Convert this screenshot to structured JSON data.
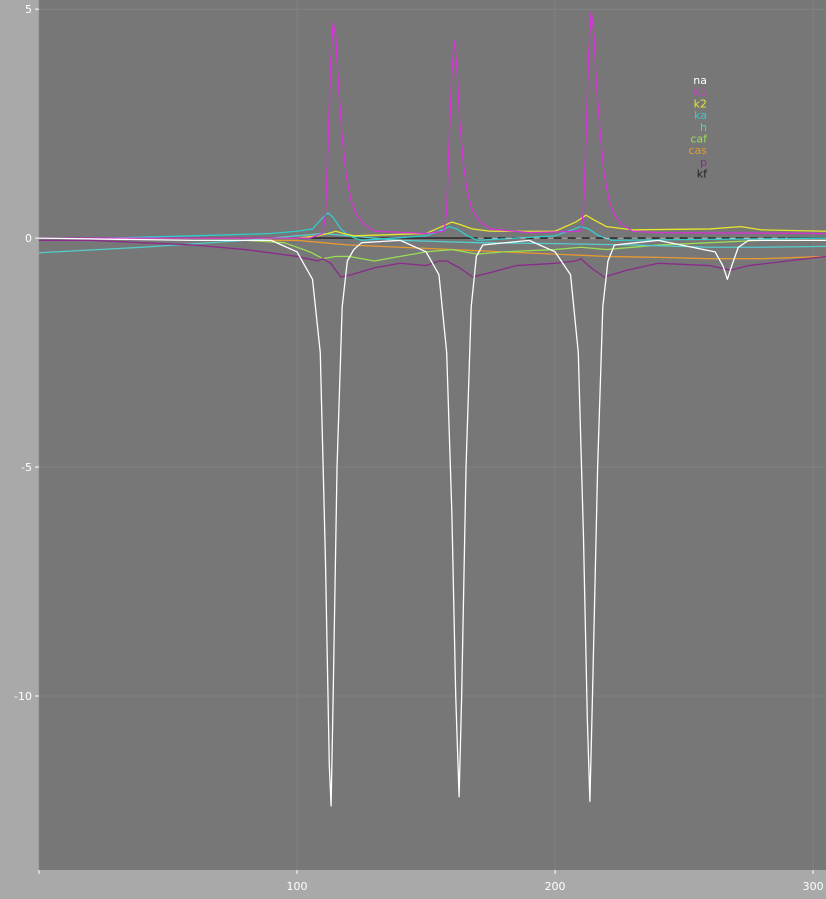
{
  "chart_data": {
    "type": "line",
    "title": "",
    "xlabel": "",
    "ylabel": "",
    "xlim": [
      0,
      305
    ],
    "ylim": [
      -13.8,
      5.2
    ],
    "grid": true,
    "legend_position": "top-right",
    "plot_background": "#777777",
    "outer_background": "#a9a9a9",
    "xticks": [
      {
        "value": 0,
        "label": ""
      },
      {
        "value": 100,
        "label": "100"
      },
      {
        "value": 200,
        "label": "200"
      },
      {
        "value": 300,
        "label": "300"
      }
    ],
    "yticks": [
      {
        "value": 5,
        "label": "5"
      },
      {
        "value": 0,
        "label": "0"
      },
      {
        "value": -5,
        "label": "-5"
      },
      {
        "value": -10,
        "label": "-10"
      }
    ],
    "series": [
      {
        "name": "na",
        "color": "#ffffff",
        "points": [
          [
            0,
            0
          ],
          [
            60,
            -0.05
          ],
          [
            90,
            -0.05
          ],
          [
            100,
            -0.3
          ],
          [
            106,
            -0.9
          ],
          [
            109,
            -2.5
          ],
          [
            111,
            -7
          ],
          [
            112.5,
            -11.5
          ],
          [
            113.2,
            -12.4
          ],
          [
            114,
            -10
          ],
          [
            115.5,
            -5
          ],
          [
            117.5,
            -1.5
          ],
          [
            119.5,
            -0.5
          ],
          [
            122,
            -0.25
          ],
          [
            125,
            -0.1
          ],
          [
            140,
            -0.05
          ],
          [
            150,
            -0.3
          ],
          [
            155,
            -0.8
          ],
          [
            158,
            -2.5
          ],
          [
            160,
            -6
          ],
          [
            161.5,
            -10
          ],
          [
            162.8,
            -12.2
          ],
          [
            163.8,
            -10
          ],
          [
            165.5,
            -5
          ],
          [
            167.5,
            -1.5
          ],
          [
            169.5,
            -0.4
          ],
          [
            172,
            -0.15
          ],
          [
            190,
            -0.05
          ],
          [
            200,
            -0.3
          ],
          [
            206,
            -0.8
          ],
          [
            209,
            -2.5
          ],
          [
            211,
            -6.5
          ],
          [
            212.5,
            -10.5
          ],
          [
            213.5,
            -12.3
          ],
          [
            214.5,
            -10
          ],
          [
            216.5,
            -5
          ],
          [
            218.5,
            -1.5
          ],
          [
            220.5,
            -0.5
          ],
          [
            223,
            -0.15
          ],
          [
            240,
            -0.05
          ],
          [
            262,
            -0.3
          ],
          [
            265,
            -0.6
          ],
          [
            266.8,
            -0.9
          ],
          [
            268.5,
            -0.6
          ],
          [
            271,
            -0.2
          ],
          [
            275,
            -0.05
          ],
          [
            305,
            -0.05
          ]
        ]
      },
      {
        "name": "k1",
        "color": "#d633d6",
        "points": [
          [
            0,
            0
          ],
          [
            105,
            0
          ],
          [
            110,
            0.1
          ],
          [
            111,
            0.5
          ],
          [
            112,
            2
          ],
          [
            113,
            3.8
          ],
          [
            114,
            4.7
          ],
          [
            115,
            4.4
          ],
          [
            116,
            3.4
          ],
          [
            117.5,
            2.2
          ],
          [
            119,
            1.4
          ],
          [
            121,
            0.8
          ],
          [
            123,
            0.5
          ],
          [
            126,
            0.3
          ],
          [
            130,
            0.15
          ],
          [
            150,
            0.1
          ],
          [
            157,
            0.15
          ],
          [
            158,
            0.6
          ],
          [
            159,
            2.2
          ],
          [
            160,
            3.6
          ],
          [
            161,
            4.3
          ],
          [
            162,
            3.7
          ],
          [
            163,
            2.6
          ],
          [
            164.5,
            1.6
          ],
          [
            166,
            1
          ],
          [
            168,
            0.6
          ],
          [
            171,
            0.35
          ],
          [
            175,
            0.2
          ],
          [
            190,
            0.12
          ],
          [
            210,
            0.15
          ],
          [
            211,
            0.6
          ],
          [
            212,
            2.2
          ],
          [
            213,
            4
          ],
          [
            214,
            4.95
          ],
          [
            215,
            4.5
          ],
          [
            216,
            3.4
          ],
          [
            217.5,
            2.3
          ],
          [
            219,
            1.4
          ],
          [
            221,
            0.8
          ],
          [
            223,
            0.5
          ],
          [
            226,
            0.3
          ],
          [
            230,
            0.15
          ],
          [
            240,
            0.12
          ],
          [
            305,
            0.1
          ]
        ]
      },
      {
        "name": "k2",
        "color": "#e6e62e",
        "points": [
          [
            0,
            0
          ],
          [
            100,
            0
          ],
          [
            108,
            0.05
          ],
          [
            112,
            0.1
          ],
          [
            115,
            0.15
          ],
          [
            118,
            0.1
          ],
          [
            122,
            0.05
          ],
          [
            150,
            0.1
          ],
          [
            156,
            0.25
          ],
          [
            160,
            0.35
          ],
          [
            163,
            0.3
          ],
          [
            168,
            0.2
          ],
          [
            175,
            0.15
          ],
          [
            200,
            0.15
          ],
          [
            208,
            0.35
          ],
          [
            212,
            0.5
          ],
          [
            215,
            0.4
          ],
          [
            220,
            0.25
          ],
          [
            230,
            0.18
          ],
          [
            260,
            0.2
          ],
          [
            272,
            0.25
          ],
          [
            280,
            0.18
          ],
          [
            305,
            0.15
          ]
        ]
      },
      {
        "name": "ka",
        "color": "#33cccc",
        "points": [
          [
            25,
            0
          ],
          [
            60,
            0.05
          ],
          [
            90,
            0.1
          ],
          [
            100,
            0.15
          ],
          [
            106,
            0.2
          ],
          [
            110,
            0.45
          ],
          [
            112,
            0.55
          ],
          [
            114,
            0.45
          ],
          [
            117,
            0.2
          ],
          [
            120,
            0.05
          ],
          [
            125,
            -0.05
          ],
          [
            150,
            0.05
          ],
          [
            155,
            0.15
          ],
          [
            159,
            0.25
          ],
          [
            162,
            0.2
          ],
          [
            166,
            0.05
          ],
          [
            170,
            -0.05
          ],
          [
            200,
            0.05
          ],
          [
            205,
            0.15
          ],
          [
            210,
            0.25
          ],
          [
            213,
            0.2
          ],
          [
            217,
            0.05
          ],
          [
            222,
            -0.05
          ],
          [
            305,
            0
          ]
        ]
      },
      {
        "name": "h",
        "color": "#55cccc",
        "points": [
          [
            0,
            -0.32
          ],
          [
            40,
            -0.2
          ],
          [
            80,
            -0.05
          ],
          [
            100,
            0.05
          ],
          [
            110,
            0.1
          ],
          [
            120,
            0.05
          ],
          [
            140,
            -0.05
          ],
          [
            170,
            -0.1
          ],
          [
            200,
            -0.12
          ],
          [
            230,
            -0.15
          ],
          [
            260,
            -0.2
          ],
          [
            280,
            -0.2
          ],
          [
            305,
            -0.18
          ]
        ]
      },
      {
        "name": "caf",
        "color": "#99dd55",
        "points": [
          [
            80,
            -0.05
          ],
          [
            95,
            -0.1
          ],
          [
            105,
            -0.3
          ],
          [
            110,
            -0.45
          ],
          [
            115,
            -0.4
          ],
          [
            120,
            -0.4
          ],
          [
            130,
            -0.5
          ],
          [
            140,
            -0.4
          ],
          [
            150,
            -0.3
          ],
          [
            160,
            -0.25
          ],
          [
            170,
            -0.35
          ],
          [
            180,
            -0.3
          ],
          [
            200,
            -0.25
          ],
          [
            210,
            -0.2
          ],
          [
            220,
            -0.25
          ],
          [
            240,
            -0.15
          ],
          [
            260,
            -0.1
          ],
          [
            280,
            -0.05
          ],
          [
            305,
            -0.05
          ]
        ]
      },
      {
        "name": "cas",
        "color": "#e69933",
        "points": [
          [
            80,
            -0.05
          ],
          [
            100,
            -0.05
          ],
          [
            110,
            -0.1
          ],
          [
            120,
            -0.15
          ],
          [
            140,
            -0.2
          ],
          [
            160,
            -0.25
          ],
          [
            180,
            -0.3
          ],
          [
            200,
            -0.35
          ],
          [
            220,
            -0.4
          ],
          [
            240,
            -0.42
          ],
          [
            260,
            -0.45
          ],
          [
            280,
            -0.45
          ],
          [
            305,
            -0.4
          ]
        ]
      },
      {
        "name": "p",
        "color": "#8a2a8a",
        "points": [
          [
            0,
            -0.05
          ],
          [
            20,
            -0.05
          ],
          [
            40,
            -0.1
          ],
          [
            60,
            -0.15
          ],
          [
            80,
            -0.25
          ],
          [
            100,
            -0.4
          ],
          [
            108,
            -0.5
          ],
          [
            110,
            -0.45
          ],
          [
            113,
            -0.55
          ],
          [
            117,
            -0.85
          ],
          [
            121,
            -0.8
          ],
          [
            130,
            -0.65
          ],
          [
            140,
            -0.55
          ],
          [
            150,
            -0.6
          ],
          [
            155,
            -0.5
          ],
          [
            158,
            -0.5
          ],
          [
            163,
            -0.65
          ],
          [
            168,
            -0.85
          ],
          [
            175,
            -0.75
          ],
          [
            185,
            -0.6
          ],
          [
            200,
            -0.55
          ],
          [
            208,
            -0.5
          ],
          [
            210,
            -0.45
          ],
          [
            214,
            -0.65
          ],
          [
            219,
            -0.85
          ],
          [
            228,
            -0.7
          ],
          [
            240,
            -0.55
          ],
          [
            260,
            -0.6
          ],
          [
            268,
            -0.7
          ],
          [
            275,
            -0.6
          ],
          [
            290,
            -0.5
          ],
          [
            305,
            -0.4
          ]
        ]
      },
      {
        "name": "kf",
        "color": "#222222",
        "points": [
          [
            0,
            0
          ],
          [
            305,
            0
          ]
        ]
      }
    ],
    "annotations": [
      {
        "type": "dashed-baseline",
        "from": 170,
        "to": 290,
        "y": 0,
        "color": "#cccccc"
      }
    ]
  }
}
